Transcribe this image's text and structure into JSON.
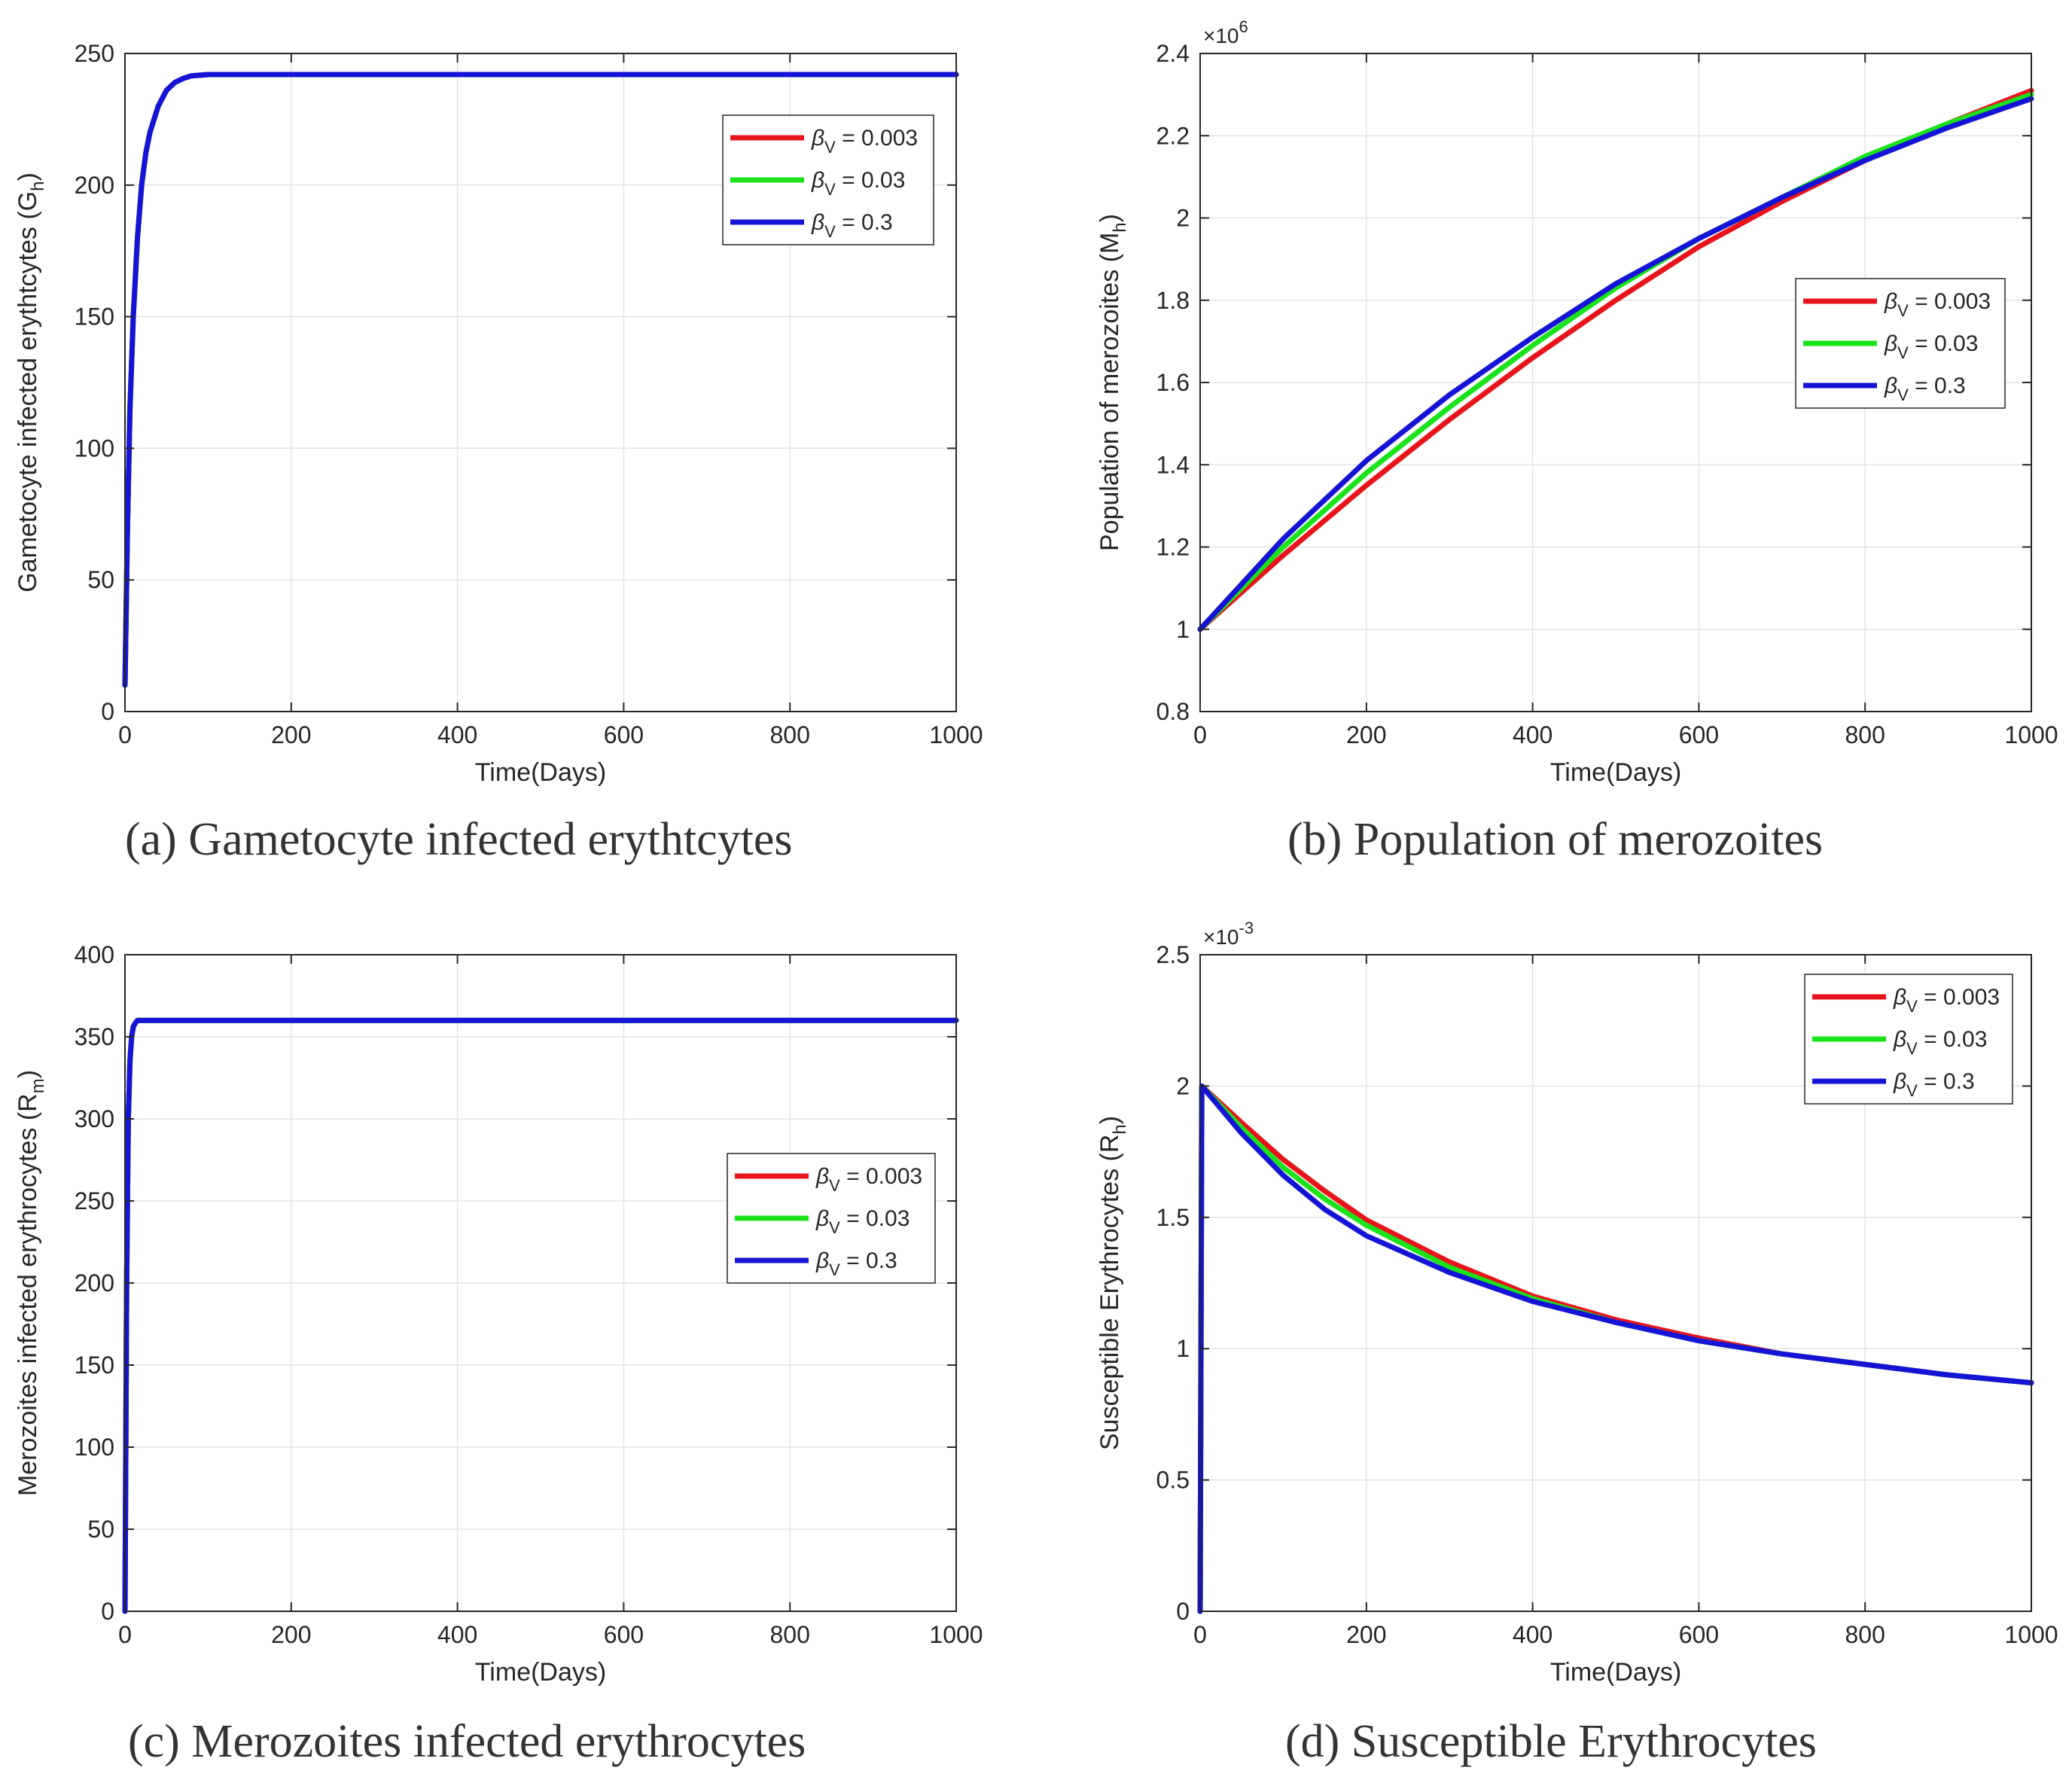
{
  "legend": {
    "beta": "β",
    "sub": "V",
    "labels": [
      "= 0.003",
      "= 0.03",
      "= 0.3"
    ],
    "colors": [
      "#e8141c",
      "#1be31b",
      "#1414d6"
    ]
  },
  "chart_data": [
    {
      "id": "a",
      "type": "line",
      "caption": "(a) Gametocyte infected erythtcytes",
      "xlabel": "Time(Days)",
      "ylabel": "Gametocyte infected erythtcytes (G",
      "ylabel_sub": "h",
      "ylabel_close": ")",
      "xlim": [
        0,
        1000
      ],
      "ylim": [
        0,
        250
      ],
      "xticks": [
        0,
        200,
        400,
        600,
        800,
        1000
      ],
      "yticks": [
        0,
        50,
        100,
        150,
        200,
        250
      ],
      "ytick_labels": [
        "0",
        "50",
        "100",
        "150",
        "200",
        "250"
      ],
      "exponent": null,
      "legend_position": "top-right",
      "series": [
        {
          "name": "β_V = 0.003",
          "color": "#e8141c",
          "x": [
            0,
            3,
            6,
            10,
            15,
            20,
            25,
            30,
            40,
            50,
            60,
            70,
            80,
            100,
            150,
            200,
            400,
            600,
            800,
            1000
          ],
          "y": [
            10,
            70,
            115,
            150,
            180,
            200,
            212,
            220,
            230,
            236,
            239,
            240.5,
            241.5,
            242,
            242,
            242,
            242,
            242,
            242,
            242
          ]
        },
        {
          "name": "β_V = 0.03",
          "color": "#1be31b",
          "x": [
            0,
            3,
            6,
            10,
            15,
            20,
            25,
            30,
            40,
            50,
            60,
            70,
            80,
            100,
            150,
            200,
            400,
            600,
            800,
            1000
          ],
          "y": [
            10,
            70,
            115,
            150,
            180,
            200,
            212,
            220,
            230,
            236,
            239,
            240.5,
            241.5,
            242,
            242,
            242,
            242,
            242,
            242,
            242
          ]
        },
        {
          "name": "β_V = 0.3",
          "color": "#1414d6",
          "x": [
            0,
            3,
            6,
            10,
            15,
            20,
            25,
            30,
            40,
            50,
            60,
            70,
            80,
            100,
            150,
            200,
            400,
            600,
            800,
            1000
          ],
          "y": [
            10,
            70,
            115,
            150,
            180,
            200,
            212,
            220,
            230,
            236,
            239,
            240.5,
            241.5,
            242,
            242,
            242,
            242,
            242,
            242,
            242
          ]
        }
      ]
    },
    {
      "id": "b",
      "type": "line",
      "caption": "(b) Population of merozoites",
      "xlabel": "Time(Days)",
      "ylabel": "Population of merozoites   (M",
      "ylabel_sub": "h",
      "ylabel_close": ")",
      "xlim": [
        0,
        1000
      ],
      "ylim": [
        0.8,
        2.4
      ],
      "xticks": [
        0,
        200,
        400,
        600,
        800,
        1000
      ],
      "yticks": [
        0.8,
        1.0,
        1.2,
        1.4,
        1.6,
        1.8,
        2.0,
        2.2,
        2.4
      ],
      "ytick_labels": [
        "0.8",
        "1",
        "1.2",
        "1.4",
        "1.6",
        "1.8",
        "2",
        "2.2",
        "2.4"
      ],
      "exponent": {
        "base": "×10",
        "power": "6"
      },
      "legend_position": "center-right",
      "series": [
        {
          "name": "β_V = 0.003",
          "color": "#e8141c",
          "x": [
            0,
            100,
            200,
            300,
            400,
            500,
            600,
            700,
            800,
            900,
            1000
          ],
          "y": [
            1.0,
            1.18,
            1.35,
            1.51,
            1.66,
            1.8,
            1.93,
            2.04,
            2.14,
            2.23,
            2.31
          ]
        },
        {
          "name": "β_V = 0.03",
          "color": "#1be31b",
          "x": [
            0,
            100,
            200,
            300,
            400,
            500,
            600,
            700,
            800,
            900,
            1000
          ],
          "y": [
            1.0,
            1.2,
            1.38,
            1.54,
            1.69,
            1.83,
            1.95,
            2.05,
            2.15,
            2.23,
            2.3
          ]
        },
        {
          "name": "β_V = 0.3",
          "color": "#1414d6",
          "x": [
            0,
            100,
            200,
            300,
            400,
            500,
            600,
            700,
            800,
            900,
            1000
          ],
          "y": [
            1.0,
            1.22,
            1.41,
            1.57,
            1.71,
            1.84,
            1.95,
            2.05,
            2.14,
            2.22,
            2.29
          ]
        }
      ]
    },
    {
      "id": "c",
      "type": "line",
      "caption": "(c) Merozoites infected erythrocytes",
      "xlabel": "Time(Days)",
      "ylabel": "Merozoites  infected erythrocytes (R",
      "ylabel_sub": "m",
      "ylabel_close": ")",
      "xlim": [
        0,
        1000
      ],
      "ylim": [
        0,
        400
      ],
      "xticks": [
        0,
        200,
        400,
        600,
        800,
        1000
      ],
      "yticks": [
        0,
        50,
        100,
        150,
        200,
        250,
        300,
        350,
        400
      ],
      "ytick_labels": [
        "0",
        "50",
        "100",
        "150",
        "200",
        "250",
        "300",
        "350",
        "400"
      ],
      "exponent": null,
      "legend_position": "center-right",
      "series": [
        {
          "name": "β_V = 0.003",
          "color": "#e8141c",
          "x": [
            0,
            2,
            4,
            6,
            8,
            10,
            12,
            15,
            20,
            30,
            100,
            400,
            600,
            800,
            1000
          ],
          "y": [
            0,
            200,
            300,
            335,
            350,
            356,
            358,
            360,
            360,
            360,
            360,
            360,
            360,
            360,
            360
          ]
        },
        {
          "name": "β_V = 0.03",
          "color": "#1be31b",
          "x": [
            0,
            2,
            4,
            6,
            8,
            10,
            12,
            15,
            20,
            30,
            100,
            400,
            600,
            800,
            1000
          ],
          "y": [
            0,
            200,
            300,
            335,
            350,
            356,
            358,
            360,
            360,
            360,
            360,
            360,
            360,
            360,
            360
          ]
        },
        {
          "name": "β_V = 0.3",
          "color": "#1414d6",
          "x": [
            0,
            2,
            4,
            6,
            8,
            10,
            12,
            15,
            20,
            30,
            100,
            400,
            600,
            800,
            1000
          ],
          "y": [
            0,
            200,
            300,
            335,
            350,
            356,
            358,
            360,
            360,
            360,
            360,
            360,
            360,
            360,
            360
          ]
        }
      ]
    },
    {
      "id": "d",
      "type": "line",
      "caption": "(d) Susceptible Erythrocytes",
      "xlabel": "Time(Days)",
      "ylabel": "Susceptible Erythrocytes (R",
      "ylabel_sub": "h",
      "ylabel_close": ")",
      "xlim": [
        0,
        1000
      ],
      "ylim": [
        0,
        2.5
      ],
      "xticks": [
        0,
        200,
        400,
        600,
        800,
        1000
      ],
      "yticks": [
        0,
        0.5,
        1.0,
        1.5,
        2.0,
        2.5
      ],
      "ytick_labels": [
        "0",
        "0.5",
        "1",
        "1.5",
        "2",
        "2.5"
      ],
      "exponent": {
        "base": "×10",
        "power": "-3"
      },
      "legend_position": "top-right",
      "series": [
        {
          "name": "β_V = 0.003",
          "color": "#e8141c",
          "x": [
            0,
            2,
            50,
            100,
            150,
            200,
            300,
            400,
            500,
            600,
            700,
            800,
            900,
            1000
          ],
          "y": [
            0,
            2.0,
            1.86,
            1.72,
            1.6,
            1.49,
            1.33,
            1.2,
            1.11,
            1.04,
            0.98,
            0.94,
            0.9,
            0.87
          ]
        },
        {
          "name": "β_V = 0.03",
          "color": "#1be31b",
          "x": [
            0,
            2,
            50,
            100,
            150,
            200,
            300,
            400,
            500,
            600,
            700,
            800,
            900,
            1000
          ],
          "y": [
            0,
            2.0,
            1.84,
            1.69,
            1.57,
            1.47,
            1.31,
            1.19,
            1.1,
            1.03,
            0.98,
            0.94,
            0.9,
            0.87
          ]
        },
        {
          "name": "β_V = 0.3",
          "color": "#1414d6",
          "x": [
            0,
            2,
            50,
            100,
            150,
            200,
            300,
            400,
            500,
            600,
            700,
            800,
            900,
            1000
          ],
          "y": [
            0,
            2.0,
            1.82,
            1.66,
            1.53,
            1.43,
            1.29,
            1.18,
            1.1,
            1.03,
            0.98,
            0.94,
            0.9,
            0.87
          ]
        }
      ]
    }
  ]
}
